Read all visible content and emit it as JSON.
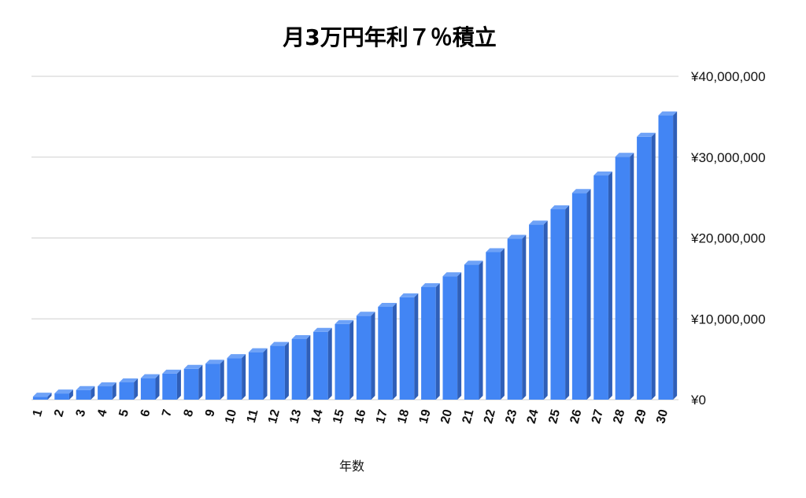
{
  "chart_data": {
    "type": "bar",
    "title": "月3万円年利７％積立",
    "xlabel": "年数",
    "ylabel": "",
    "ylim": [
      0,
      40000000
    ],
    "y_ticks": [
      0,
      10000000,
      20000000,
      30000000,
      40000000
    ],
    "y_tick_labels": [
      "¥0",
      "¥10,000,000",
      "¥20,000,000",
      "¥30,000,000",
      "¥40,000,000"
    ],
    "y_axis_side": "right",
    "grid": true,
    "legend": "none",
    "colors": {
      "bar_front": "#4285f4",
      "bar_side": "#2f5fb8",
      "bar_top": "#6ea2f7"
    },
    "categories": [
      "1",
      "2",
      "3",
      "4",
      "5",
      "6",
      "7",
      "8",
      "9",
      "10",
      "11",
      "12",
      "13",
      "14",
      "15",
      "16",
      "17",
      "18",
      "19",
      "20",
      "21",
      "22",
      "23",
      "24",
      "25",
      "26",
      "27",
      "28",
      "29",
      "30"
    ],
    "values": [
      372000,
      770000,
      1196000,
      1652000,
      2140000,
      2662000,
      3221000,
      3818000,
      4458000,
      5143000,
      5875000,
      6659000,
      7498000,
      8395000,
      9356000,
      10384000,
      11483000,
      12660000,
      13918000,
      15265000,
      16706000,
      18248000,
      19898000,
      21663000,
      23551000,
      25572000,
      27735000,
      30049000,
      32525000,
      35174000
    ]
  }
}
